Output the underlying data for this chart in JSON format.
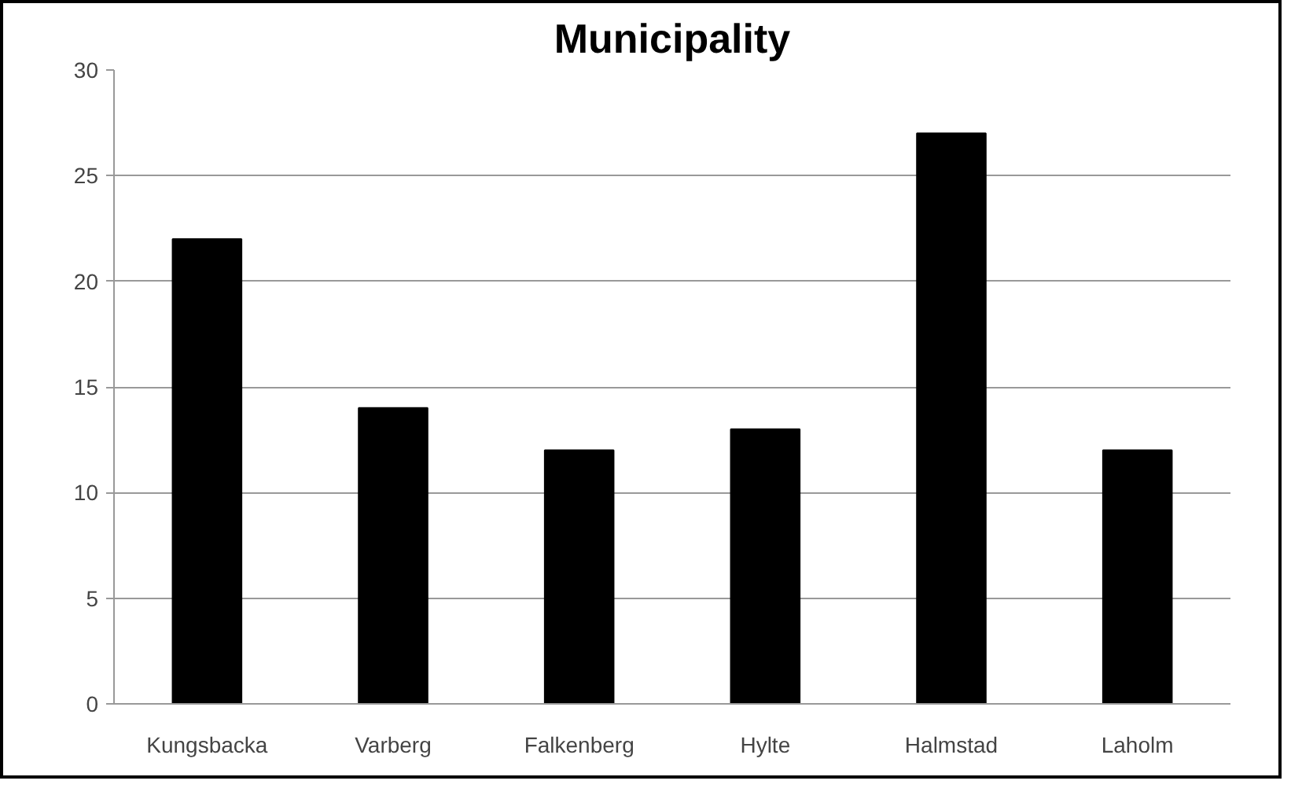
{
  "chart_data": {
    "type": "bar",
    "title": "Municipality",
    "categories": [
      "Kungsbacka",
      "Varberg",
      "Falkenberg",
      "Hylte",
      "Halmstad",
      "Laholm"
    ],
    "values": [
      22,
      14,
      12,
      13,
      27,
      12
    ],
    "color": "#000000",
    "ylim": [
      0,
      30
    ],
    "yticks": [
      0,
      5,
      10,
      15,
      20,
      25,
      30
    ],
    "grid": "y"
  }
}
